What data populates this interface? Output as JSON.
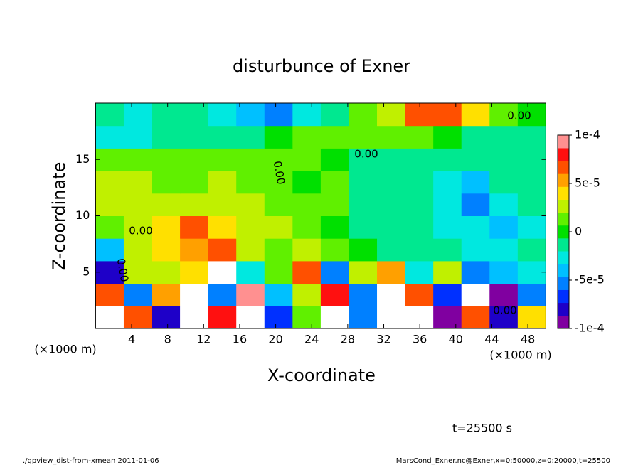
{
  "chart_data": {
    "type": "contour",
    "title": "disturbunce of Exner",
    "x_label": "X-coordinate",
    "y_label": "Z-coordinate",
    "x_unit": "(×1000 m)",
    "contour_label": "0.00",
    "time_label": "t=25500 s",
    "footer_left": "./gpview_dist-from-xmean  2011-01-06",
    "footer_right": "MarsCond_Exner.nc@Exner,x=0:50000,z=0:20000,t=25500",
    "xlim": [
      0,
      50
    ],
    "ylim": [
      0,
      20
    ],
    "xticks": [
      4,
      8,
      12,
      16,
      20,
      24,
      28,
      32,
      36,
      40,
      44,
      48
    ],
    "yticks": [
      5,
      10,
      15
    ],
    "clim": [
      -0.0001,
      0.0001
    ],
    "cticks": [
      {
        "value": 0.0001,
        "label": "1e-4"
      },
      {
        "value": 5e-05,
        "label": "5e-5"
      },
      0,
      {
        "value": -5e-05,
        "label": "-5e-5"
      },
      {
        "value": -0.0001,
        "label": "-1e-4"
      }
    ],
    "colormap": [
      "#8000a0",
      "#1e00c8",
      "#0030ff",
      "#0080ff",
      "#00c0ff",
      "#00e8e0",
      "#00e890",
      "#00e000",
      "#60f000",
      "#c0f000",
      "#ffe000",
      "#ffa000",
      "#ff5000",
      "#ff1010",
      "#ff9090"
    ],
    "over_color": "#ffffff",
    "z": [
      [
        0.00015,
        6e-05,
        -8e-05,
        0.00015,
        8e-05,
        0.00015,
        -7e-05,
        1e-05,
        0.00015,
        -6e-05,
        0.00015,
        0.00015,
        -0.0001,
        7e-05,
        -8e-05,
        4e-05
      ],
      [
        6e-05,
        -6e-05,
        5e-05,
        0.00015,
        -5e-05,
        9e-05,
        -4e-05,
        2e-05,
        8e-05,
        -5e-05,
        0.00015,
        6e-05,
        -7e-05,
        0.00015,
        -9e-05,
        -6e-05
      ],
      [
        -8e-05,
        3e-05,
        2e-05,
        4e-05,
        0.00015,
        -3e-05,
        1e-05,
        7e-05,
        -6e-05,
        2e-05,
        5e-05,
        -3e-05,
        3e-05,
        -5e-05,
        -4e-05,
        -3e-05
      ],
      [
        -4e-05,
        2e-05,
        4e-05,
        5e-05,
        7e-05,
        3e-05,
        1e-05,
        2e-05,
        1e-05,
        0,
        -1e-05,
        -2e-05,
        -2e-05,
        -3e-05,
        -3e-05,
        -2e-05
      ],
      [
        1e-05,
        3e-05,
        4e-05,
        6e-05,
        4e-05,
        3e-05,
        2e-05,
        1e-05,
        0,
        -1e-05,
        -1e-05,
        -2e-05,
        -3e-05,
        -3e-05,
        -4e-05,
        -3e-05
      ],
      [
        2e-05,
        3e-05,
        2e-05,
        3e-05,
        2e-05,
        2e-05,
        1e-05,
        1e-05,
        1e-05,
        -1e-05,
        -2e-05,
        -2e-05,
        -3e-05,
        -6e-05,
        -3e-05,
        -2e-05
      ],
      [
        2e-05,
        2e-05,
        1e-05,
        1e-05,
        2e-05,
        1e-05,
        1e-05,
        0,
        1e-05,
        -1e-05,
        -2e-05,
        -2e-05,
        -3e-05,
        -4e-05,
        -2e-05,
        -1e-05
      ],
      [
        1e-05,
        1e-05,
        1e-05,
        1e-05,
        1e-05,
        1e-05,
        1e-05,
        1e-05,
        0,
        -1e-05,
        -2e-05,
        -2e-05,
        -2e-05,
        -2e-05,
        -1e-05,
        -1e-05
      ],
      [
        -3e-05,
        -3e-05,
        -2e-05,
        -1e-05,
        -1e-05,
        -1e-05,
        0,
        1e-05,
        1e-05,
        1e-05,
        1e-05,
        1e-05,
        0,
        -1e-05,
        -1e-05,
        -1e-05
      ],
      [
        -2e-05,
        -3e-05,
        -2e-05,
        -2e-05,
        -3e-05,
        -4e-05,
        -6e-05,
        -3e-05,
        -1e-05,
        1e-05,
        2e-05,
        6e-05,
        7e-05,
        4e-05,
        1e-05,
        0
      ]
    ]
  }
}
